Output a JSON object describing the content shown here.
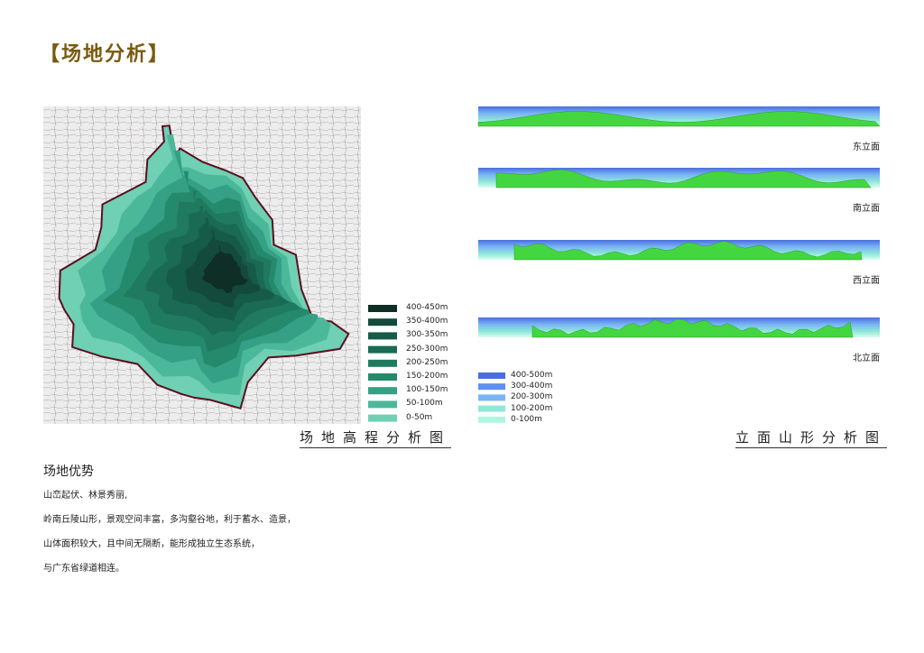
{
  "header": {
    "title": "【场地分析】"
  },
  "elevation_map": {
    "caption": "场地高程分析图",
    "legend": [
      {
        "label": "400-450m",
        "color": "#0e2e26"
      },
      {
        "label": "350-400m",
        "color": "#134a3c"
      },
      {
        "label": "300-350m",
        "color": "#165a48"
      },
      {
        "label": "250-300m",
        "color": "#1a6a54"
      },
      {
        "label": "200-250m",
        "color": "#1f7a60"
      },
      {
        "label": "150-200m",
        "color": "#25896c"
      },
      {
        "label": "100-150m",
        "color": "#35a085"
      },
      {
        "label": "50-100m",
        "color": "#4cb89a"
      },
      {
        "label": "0-50m",
        "color": "#6fd0b4"
      }
    ]
  },
  "elevations": {
    "caption": "立面山形分析图",
    "views": [
      "东立面",
      "南立面",
      "西立面",
      "北立面"
    ],
    "legend": [
      {
        "label": "400-500m",
        "color": "#4a6ee0"
      },
      {
        "label": "300-400m",
        "color": "#5f8ef0"
      },
      {
        "label": "200-300m",
        "color": "#79b4f5"
      },
      {
        "label": "100-200m",
        "color": "#8fe8d8"
      },
      {
        "label": "0-100m",
        "color": "#b0f5e0"
      }
    ]
  },
  "advantages": {
    "heading": "场地优势",
    "lines": [
      "山峦起伏、林景秀丽,",
      "岭南丘陵山形，景观空间丰富，多沟壑谷地，利于蓄水、造景，",
      "山体面积较大，且中间无隔断，能形成独立生态系统，",
      "与广东省绿道相连。"
    ]
  }
}
